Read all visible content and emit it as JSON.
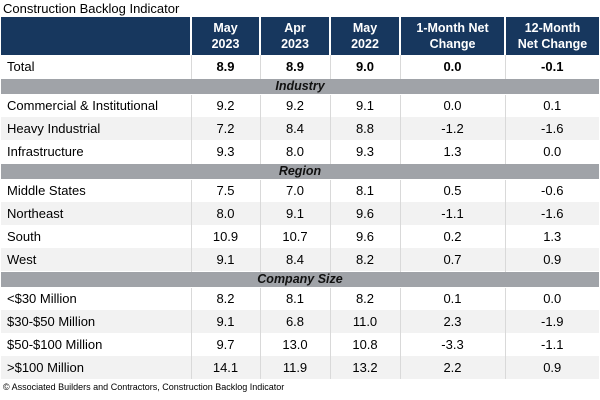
{
  "title": "Construction Backlog Indicator",
  "footer": "© Associated Builders and Contractors, Construction Backlog Indicator",
  "colors": {
    "header_bg": "#17375E",
    "header_text": "#FFFFFF",
    "section_bg": "#A0A3A8",
    "alt_row_bg": "#F2F2F2",
    "grid_line": "#D9D9D9"
  },
  "chart_data": {
    "type": "table",
    "title": "Construction Backlog Indicator",
    "columns": [
      "May\n2023",
      "Apr\n2023",
      "May\n2022",
      "1-Month Net\nChange",
      "12-Month\nNet Change"
    ],
    "rows": [
      {
        "type": "total",
        "label": "Total",
        "values": [
          "8.9",
          "8.9",
          "9.0",
          "0.0",
          "-0.1"
        ]
      },
      {
        "type": "section",
        "label": "Industry"
      },
      {
        "type": "data",
        "label": "Commercial & Institutional",
        "values": [
          "9.2",
          "9.2",
          "9.1",
          "0.0",
          "0.1"
        ]
      },
      {
        "type": "data",
        "label": "Heavy Industrial",
        "values": [
          "7.2",
          "8.4",
          "8.8",
          "-1.2",
          "-1.6"
        ]
      },
      {
        "type": "data",
        "label": "Infrastructure",
        "values": [
          "9.3",
          "8.0",
          "9.3",
          "1.3",
          "0.0"
        ]
      },
      {
        "type": "section",
        "label": "Region"
      },
      {
        "type": "data",
        "label": "Middle States",
        "values": [
          "7.5",
          "7.0",
          "8.1",
          "0.5",
          "-0.6"
        ]
      },
      {
        "type": "data",
        "label": "Northeast",
        "values": [
          "8.0",
          "9.1",
          "9.6",
          "-1.1",
          "-1.6"
        ]
      },
      {
        "type": "data",
        "label": "South",
        "values": [
          "10.9",
          "10.7",
          "9.6",
          "0.2",
          "1.3"
        ]
      },
      {
        "type": "data",
        "label": "West",
        "values": [
          "9.1",
          "8.4",
          "8.2",
          "0.7",
          "0.9"
        ]
      },
      {
        "type": "section",
        "label": "Company Size"
      },
      {
        "type": "data",
        "label": "<$30 Million",
        "values": [
          "8.2",
          "8.1",
          "8.2",
          "0.1",
          "0.0"
        ]
      },
      {
        "type": "data",
        "label": "$30-$50 Million",
        "values": [
          "9.1",
          "6.8",
          "11.0",
          "2.3",
          "-1.9"
        ]
      },
      {
        "type": "data",
        "label": "$50-$100 Million",
        "values": [
          "9.7",
          "13.0",
          "10.8",
          "-3.3",
          "-1.1"
        ]
      },
      {
        "type": "data",
        "label": ">$100 Million",
        "values": [
          "14.1",
          "11.9",
          "13.2",
          "2.2",
          "0.9"
        ]
      }
    ],
    "footer": "© Associated Builders and Contractors, Construction Backlog Indicator"
  }
}
